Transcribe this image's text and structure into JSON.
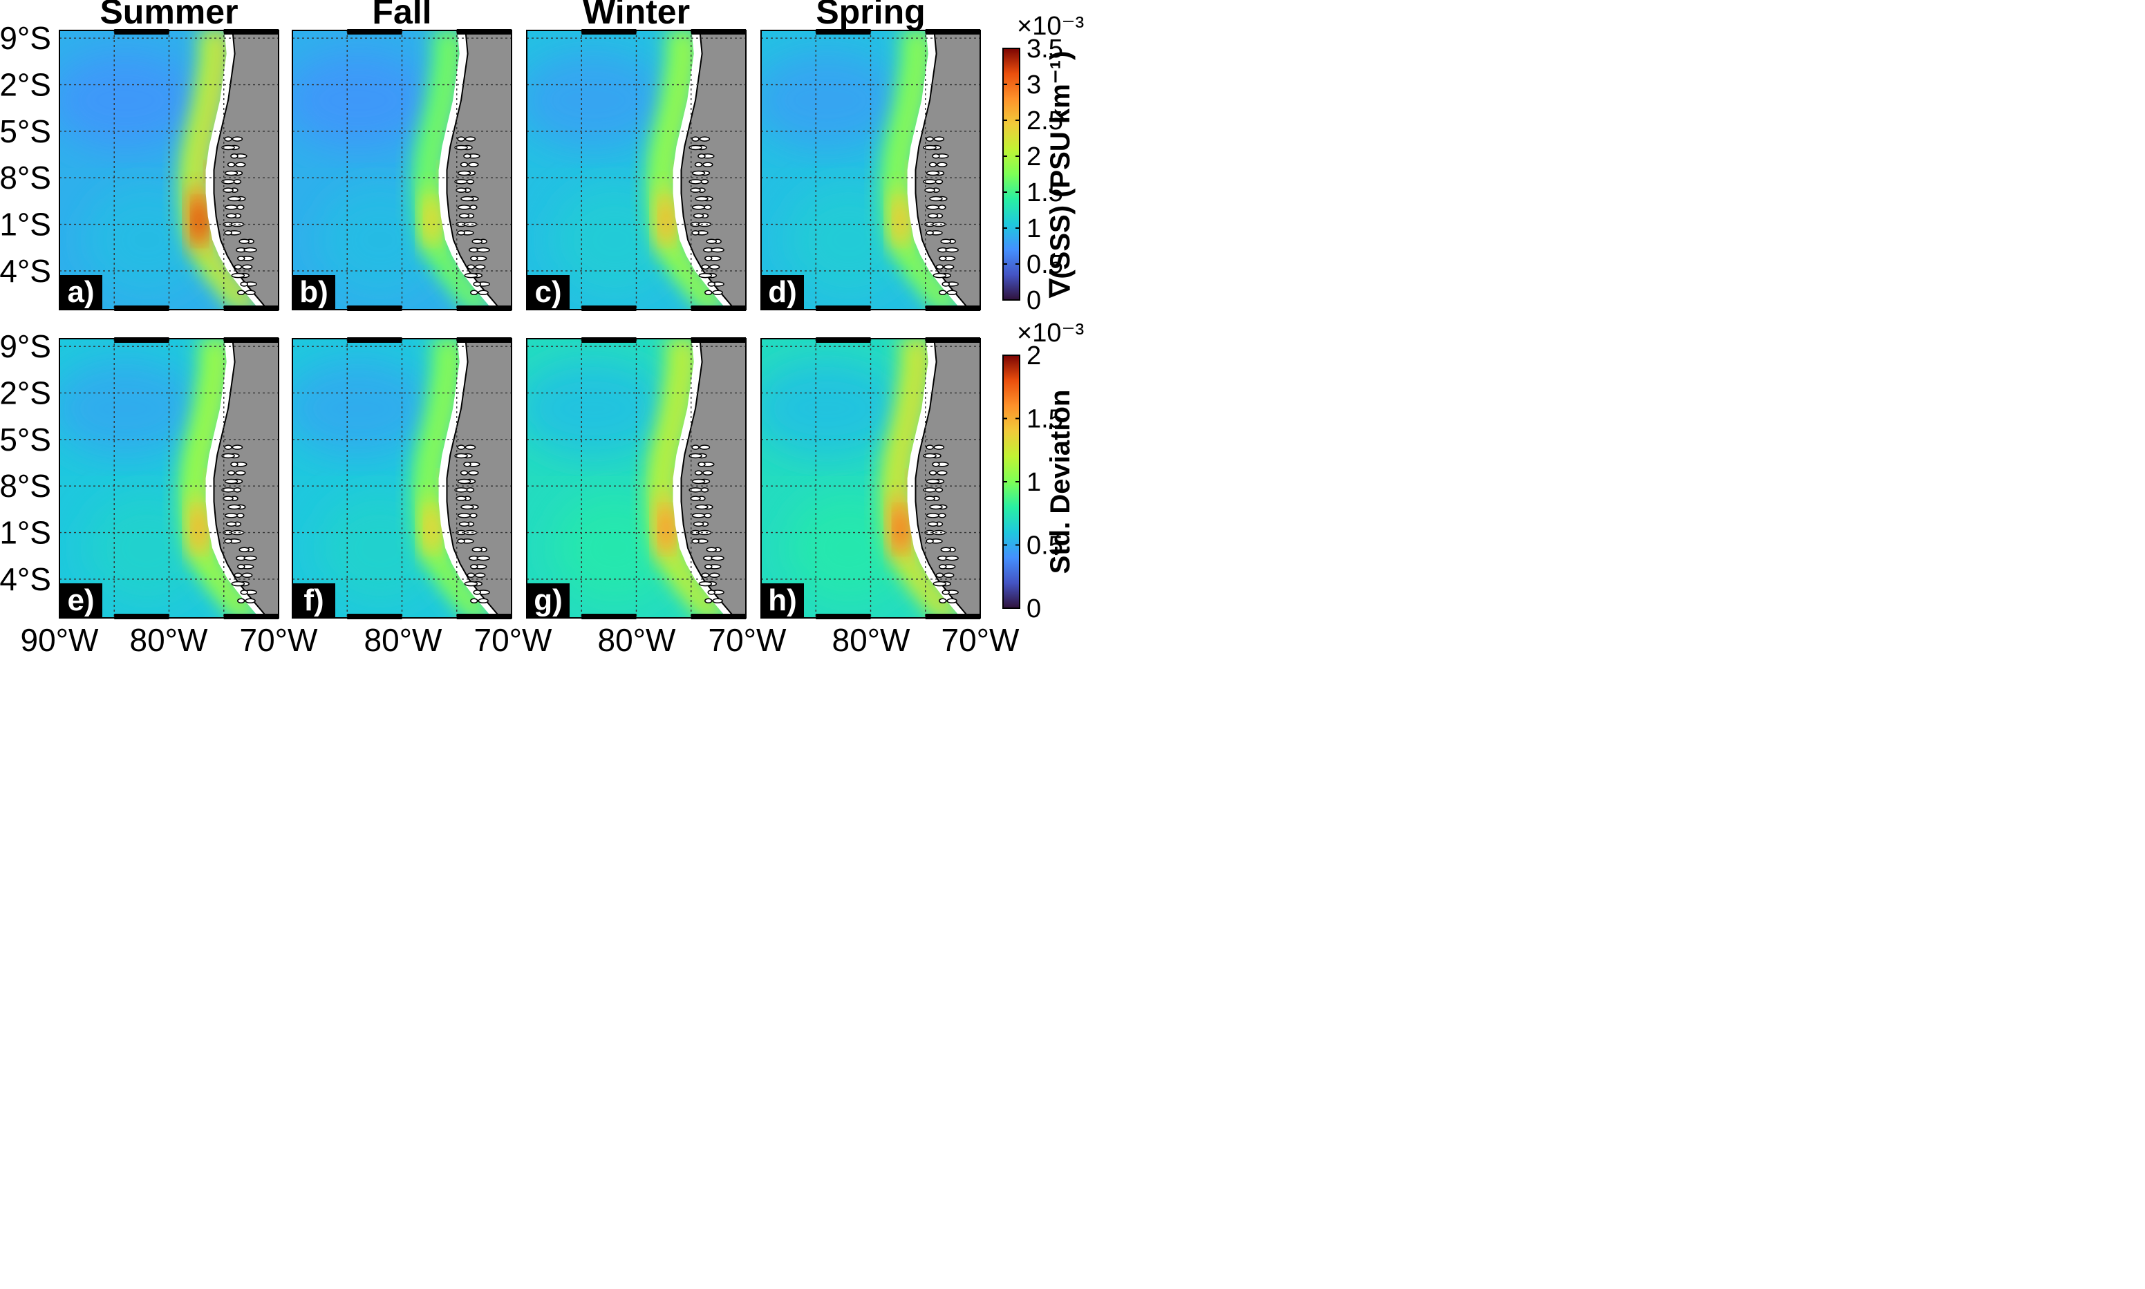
{
  "chart_data": {
    "type": "heatmap",
    "columns": [
      "Summer",
      "Fall",
      "Winter",
      "Spring"
    ],
    "rows": [
      {
        "row": "mean",
        "panel_labels": [
          "a)",
          "b)",
          "c)",
          "d)"
        ],
        "colorbar": {
          "label": "∇(SSS) (PSU km⁻¹)",
          "exponent": "×10⁻³",
          "range": [
            0,
            3.5
          ],
          "ticks": [
            "0",
            "0.5",
            "1",
            "1.5",
            "2",
            "2.5",
            "3",
            "3.5"
          ],
          "tick_values": [
            0,
            0.5,
            1,
            1.5,
            2,
            2.5,
            3,
            3.5
          ]
        },
        "peak_values": [
          3.2,
          2.4,
          2.6,
          2.5
        ],
        "offshore_values": [
          0.9,
          0.9,
          1.0,
          1.0
        ]
      },
      {
        "row": "std",
        "panel_labels": [
          "e)",
          "f)",
          "g)",
          "h)"
        ],
        "colorbar": {
          "label": "Std. Deviation",
          "exponent": "×10⁻³",
          "range": [
            0,
            2
          ],
          "ticks": [
            "0",
            "0.5",
            "1",
            "1.5",
            "2"
          ],
          "tick_values": [
            0,
            0.5,
            1,
            1.5,
            2
          ]
        },
        "peak_values": [
          1.5,
          1.4,
          1.6,
          1.7
        ],
        "offshore_values": [
          0.6,
          0.6,
          0.7,
          0.7
        ]
      }
    ],
    "lat_ticks": [
      "39°S",
      "42°S",
      "45°S",
      "48°S",
      "51°S",
      "54°S"
    ],
    "lat_values": [
      -39,
      -42,
      -45,
      -48,
      -51,
      -54
    ],
    "lon_ticks": [
      "90°W",
      "80°W",
      "70°W",
      "80°W",
      "70°W",
      "80°W",
      "70°W",
      "80°W",
      "70°W"
    ],
    "lon_values": [
      -90,
      -80,
      -70
    ],
    "lat_range": [
      -56.5,
      -38.5
    ],
    "lon_range": [
      -90,
      -70
    ],
    "colormap": "turbo",
    "land_color": "#8f8f8f"
  }
}
